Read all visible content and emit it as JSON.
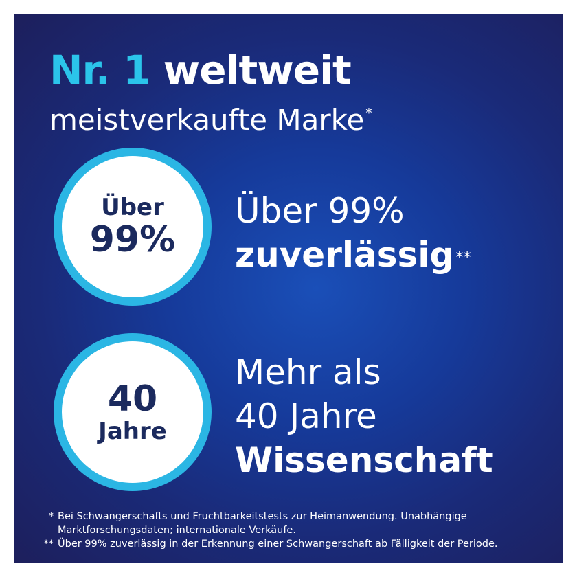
{
  "header": {
    "title_highlight": "Nr. 1",
    "title_rest": "weltweit",
    "subtitle": "meistverkaufte Marke",
    "subtitle_mark": "*"
  },
  "claims": [
    {
      "badge_top": "Über",
      "badge_main": "99%",
      "lines": [
        "Über 99%"
      ],
      "emphasis": "zuverlässig",
      "mark": "**"
    },
    {
      "badge_main": "40",
      "badge_bottom": "Jahre",
      "lines": [
        "Mehr als",
        "40 Jahre"
      ],
      "emphasis": "Wissenschaft"
    }
  ],
  "footnotes": [
    {
      "mark": "*",
      "text": "Bei Schwangerschafts und Fruchtbarkeitstests zur Heimanwendung. Unabhängige Marktforschungsdaten; internationale Verkäufe."
    },
    {
      "mark": "**",
      "text": "Über 99% zuverlässig in der Erkennung einer Schwangerschaft ab Fälligkeit der Periode."
    }
  ]
}
